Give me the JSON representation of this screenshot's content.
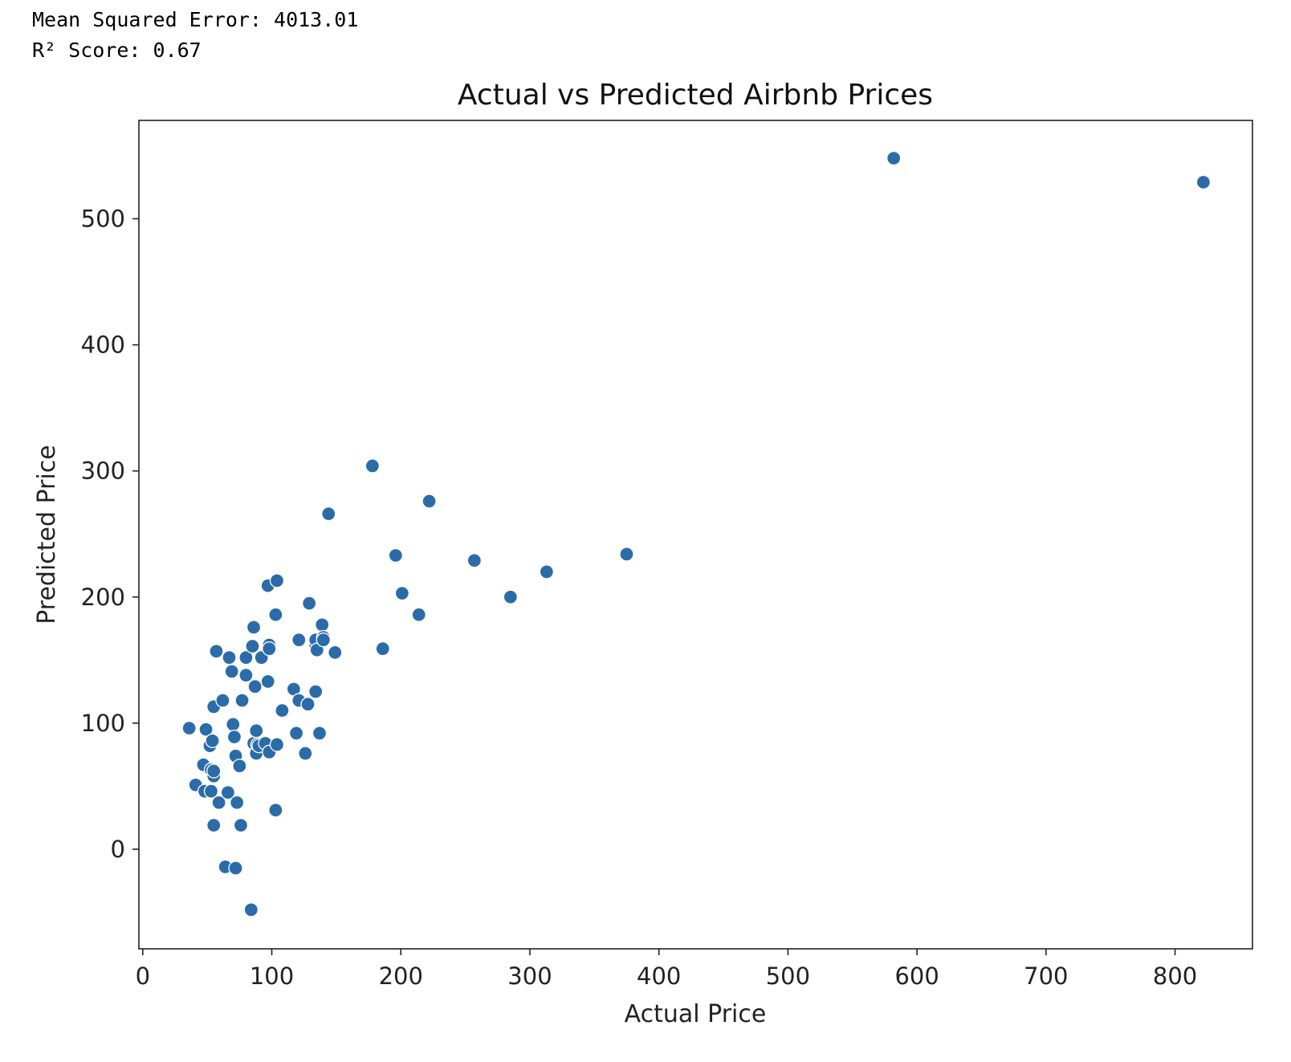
{
  "output": {
    "mse_line": "Mean Squared Error: 4013.01",
    "r2_line": "R² Score: 0.67"
  },
  "chart_data": {
    "type": "scatter",
    "title": "Actual vs Predicted Airbnb Prices",
    "xlabel": "Actual Price",
    "ylabel": "Predicted Price",
    "xlim": [
      -3,
      860
    ],
    "ylim": [
      -79,
      578
    ],
    "xticks": [
      0,
      100,
      200,
      300,
      400,
      500,
      600,
      700,
      800
    ],
    "yticks": [
      0,
      100,
      200,
      300,
      400,
      500
    ],
    "grid": false,
    "marker_color": "#2b6ca8",
    "points": [
      [
        36,
        96
      ],
      [
        41,
        51
      ],
      [
        47,
        67
      ],
      [
        48,
        46
      ],
      [
        49,
        95
      ],
      [
        52,
        82
      ],
      [
        53,
        63
      ],
      [
        53,
        46
      ],
      [
        54,
        86
      ],
      [
        55,
        58
      ],
      [
        55,
        62
      ],
      [
        55,
        113
      ],
      [
        55,
        19
      ],
      [
        57,
        157
      ],
      [
        59,
        37
      ],
      [
        62,
        118
      ],
      [
        64,
        -14
      ],
      [
        66,
        45
      ],
      [
        67,
        152
      ],
      [
        69,
        141
      ],
      [
        70,
        99
      ],
      [
        71,
        89
      ],
      [
        72,
        -15
      ],
      [
        72,
        74
      ],
      [
        73,
        37
      ],
      [
        75,
        66
      ],
      [
        76,
        19
      ],
      [
        77,
        118
      ],
      [
        80,
        152
      ],
      [
        80,
        138
      ],
      [
        84,
        -48
      ],
      [
        85,
        161
      ],
      [
        86,
        176
      ],
      [
        86,
        84
      ],
      [
        87,
        129
      ],
      [
        88,
        94
      ],
      [
        88,
        76
      ],
      [
        89,
        83
      ],
      [
        90,
        82
      ],
      [
        92,
        152
      ],
      [
        95,
        84
      ],
      [
        97,
        133
      ],
      [
        97,
        209
      ],
      [
        98,
        77
      ],
      [
        98,
        162
      ],
      [
        98,
        159
      ],
      [
        103,
        186
      ],
      [
        103,
        31
      ],
      [
        104,
        213
      ],
      [
        104,
        83
      ],
      [
        108,
        110
      ],
      [
        117,
        127
      ],
      [
        119,
        92
      ],
      [
        121,
        118
      ],
      [
        121,
        166
      ],
      [
        126,
        76
      ],
      [
        128,
        115
      ],
      [
        129,
        195
      ],
      [
        134,
        162
      ],
      [
        134,
        166
      ],
      [
        134,
        125
      ],
      [
        135,
        158
      ],
      [
        137,
        92
      ],
      [
        139,
        178
      ],
      [
        140,
        168
      ],
      [
        140,
        166
      ],
      [
        144,
        266
      ],
      [
        149,
        156
      ],
      [
        178,
        304
      ],
      [
        186,
        159
      ],
      [
        196,
        233
      ],
      [
        201,
        203
      ],
      [
        214,
        186
      ],
      [
        222,
        276
      ],
      [
        257,
        229
      ],
      [
        285,
        200
      ],
      [
        313,
        220
      ],
      [
        375,
        234
      ],
      [
        582,
        548
      ],
      [
        822,
        529
      ]
    ]
  }
}
